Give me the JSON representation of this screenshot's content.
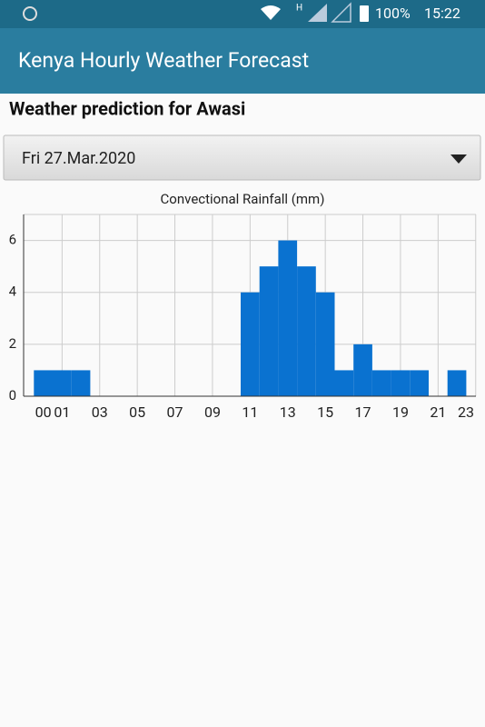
{
  "status_bar": {
    "network": "H",
    "battery": "100%",
    "time": "15:22"
  },
  "app_bar": {
    "title": "Kenya Hourly Weather Forecast"
  },
  "heading": "Weather prediction for Awasi",
  "date_select": {
    "value": "Fri 27.Mar.2020"
  },
  "chart_data": {
    "type": "bar",
    "title": "Convectional Rainfall (mm)",
    "categories": [
      "00",
      "01",
      null,
      "03",
      null,
      "05",
      null,
      "07",
      null,
      "09",
      null,
      "11",
      null,
      "13",
      null,
      "15",
      null,
      "17",
      null,
      "19",
      null,
      "21",
      null,
      "23"
    ],
    "values": [
      1,
      1,
      1,
      0,
      0,
      0,
      0,
      0,
      0,
      0,
      0,
      4,
      5,
      6,
      5,
      4,
      1,
      2,
      1,
      1,
      1,
      0,
      1,
      0
    ],
    "color": "#0a72d0",
    "ylim": [
      0,
      7
    ],
    "yticks": [
      0,
      2,
      4,
      6
    ],
    "grid": true
  }
}
